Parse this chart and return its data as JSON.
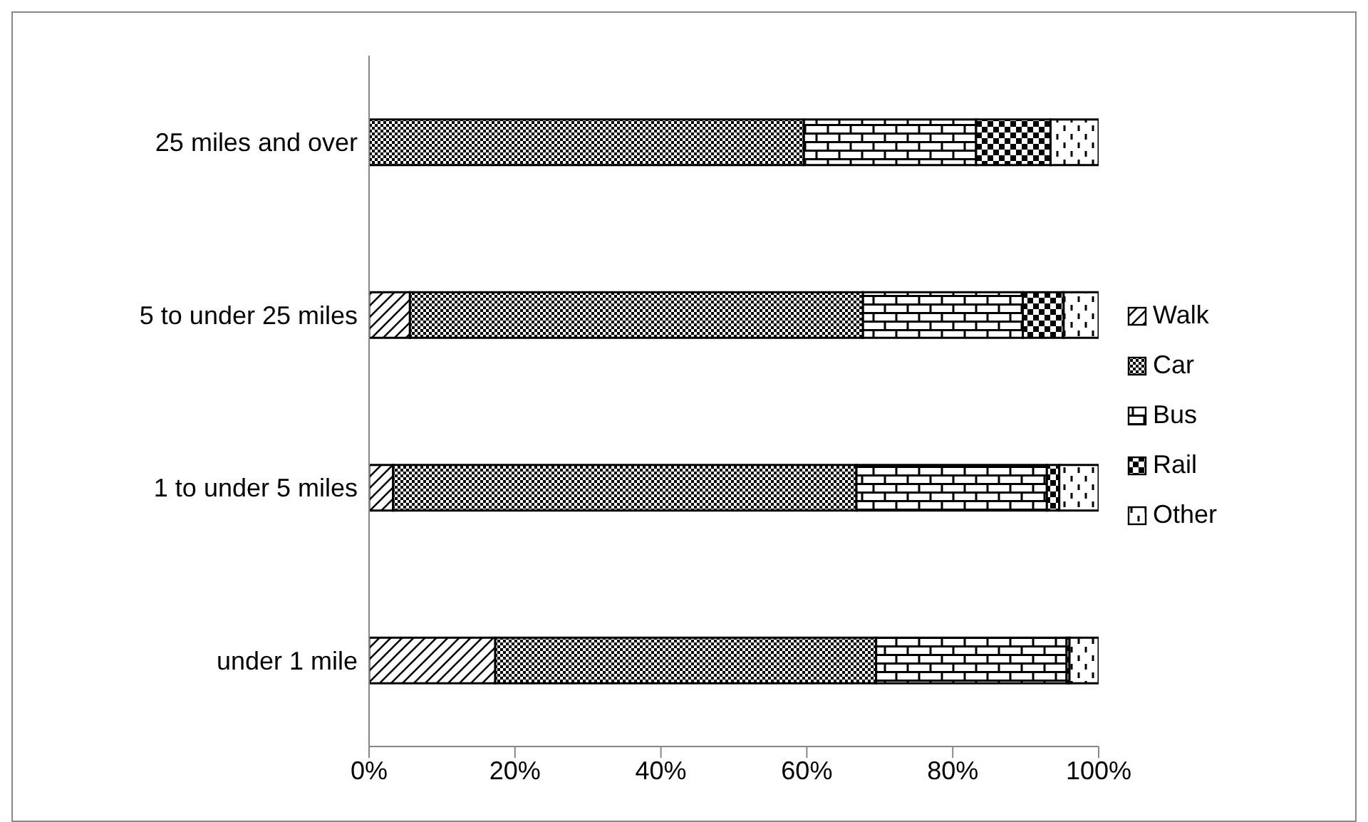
{
  "chart_data": {
    "type": "bar",
    "orientation": "horizontal",
    "stacked": true,
    "legend": "right",
    "grid": false,
    "categories": [
      "25 miles and over",
      "5 to under 25 miles",
      "1 to under 5 miles",
      "under 1 mile"
    ],
    "series": [
      {
        "name": "Walk",
        "color": "#000000",
        "values": [
          0,
          5.6,
          3.3,
          17.3
        ]
      },
      {
        "name": "Car",
        "color": "#000000",
        "values": [
          59.6,
          62.1,
          63.5,
          52.2
        ]
      },
      {
        "name": "Bus",
        "color": "#000000",
        "values": [
          23.6,
          21.9,
          26.1,
          26.1
        ]
      },
      {
        "name": "Rail",
        "color": "#000000",
        "values": [
          10.2,
          5.6,
          1.7,
          0.4
        ]
      },
      {
        "name": "Other",
        "color": "#000000",
        "values": [
          6.6,
          4.8,
          5.4,
          4.0
        ]
      }
    ],
    "xlim": [
      0,
      100
    ],
    "xticks": [
      {
        "value": 0,
        "label": "0%"
      },
      {
        "value": 20,
        "label": "20%"
      },
      {
        "value": 40,
        "label": "40%"
      },
      {
        "value": 60,
        "label": "60%"
      },
      {
        "value": 80,
        "label": "80%"
      },
      {
        "value": 100,
        "label": "100%"
      }
    ]
  }
}
